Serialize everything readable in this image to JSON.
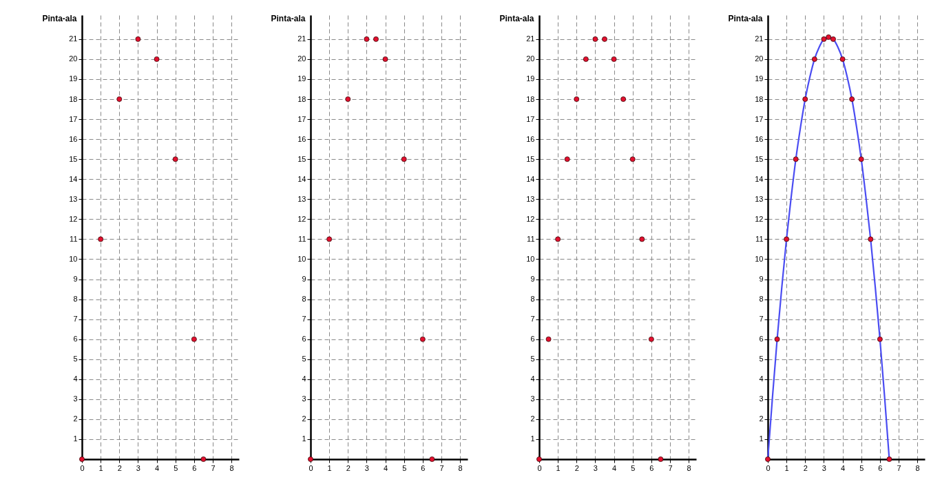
{
  "chart_data": [
    {
      "type": "scatter",
      "ylabel": "Pinta-ala",
      "xlim": [
        0,
        8.4
      ],
      "ylim": [
        0,
        22.2
      ],
      "xticks": [
        0,
        1,
        2,
        3,
        4,
        5,
        6,
        7,
        8
      ],
      "yticks": [
        1,
        2,
        3,
        4,
        5,
        6,
        7,
        8,
        9,
        10,
        11,
        12,
        13,
        14,
        15,
        16,
        17,
        18,
        19,
        20,
        21
      ],
      "grid": true,
      "marker": "circle",
      "series": [
        {
          "type": "scatter",
          "color": "#e3102f",
          "x": [
            0,
            1,
            2,
            3,
            4,
            5,
            6,
            6.5
          ],
          "values": [
            0,
            11,
            18,
            21,
            20,
            15,
            6,
            0
          ]
        }
      ]
    },
    {
      "type": "scatter",
      "ylabel": "Pinta-ala",
      "xlim": [
        0,
        8.4
      ],
      "ylim": [
        0,
        22.2
      ],
      "xticks": [
        0,
        1,
        2,
        3,
        4,
        5,
        6,
        7,
        8
      ],
      "yticks": [
        1,
        2,
        3,
        4,
        5,
        6,
        7,
        8,
        9,
        10,
        11,
        12,
        13,
        14,
        15,
        16,
        17,
        18,
        19,
        20,
        21
      ],
      "grid": true,
      "marker": "circle",
      "series": [
        {
          "type": "scatter",
          "color": "#e3102f",
          "x": [
            0,
            1,
            2,
            3,
            3.5,
            4,
            5,
            6,
            6.5
          ],
          "values": [
            0,
            11,
            18,
            21,
            21,
            20,
            15,
            6,
            0
          ]
        }
      ]
    },
    {
      "type": "scatter",
      "ylabel": "Pinta-ala",
      "xlim": [
        0,
        8.4
      ],
      "ylim": [
        0,
        22.2
      ],
      "xticks": [
        0,
        1,
        2,
        3,
        4,
        5,
        6,
        7,
        8
      ],
      "yticks": [
        1,
        2,
        3,
        4,
        5,
        6,
        7,
        8,
        9,
        10,
        11,
        12,
        13,
        14,
        15,
        16,
        17,
        18,
        19,
        20,
        21
      ],
      "grid": true,
      "marker": "circle",
      "series": [
        {
          "type": "scatter",
          "color": "#e3102f",
          "x": [
            0,
            0.5,
            1,
            1.5,
            2,
            2.5,
            3,
            3.5,
            4,
            4.5,
            5,
            5.5,
            6,
            6.5
          ],
          "values": [
            0,
            6,
            11,
            15,
            18,
            20,
            21,
            21,
            20,
            18,
            15,
            11,
            6,
            0
          ]
        }
      ]
    },
    {
      "type": "scatter",
      "ylabel": "Pinta-ala",
      "xlim": [
        0,
        8.4
      ],
      "ylim": [
        0,
        22.2
      ],
      "xticks": [
        0,
        1,
        2,
        3,
        4,
        5,
        6,
        7,
        8
      ],
      "yticks": [
        1,
        2,
        3,
        4,
        5,
        6,
        7,
        8,
        9,
        10,
        11,
        12,
        13,
        14,
        15,
        16,
        17,
        18,
        19,
        20,
        21
      ],
      "grid": true,
      "marker": "circle",
      "line_style": "solid",
      "series": [
        {
          "type": "line",
          "marker": "none",
          "color": "#4a4cf2",
          "x": [
            0,
            0.25,
            0.5,
            0.75,
            1,
            1.25,
            1.5,
            1.75,
            2,
            2.25,
            2.5,
            2.75,
            3,
            3.25,
            3.5,
            3.75,
            4,
            4.25,
            4.5,
            4.75,
            5,
            5.25,
            5.5,
            5.75,
            6,
            6.25,
            6.5
          ],
          "values": [
            0,
            3.1,
            6,
            8.6,
            11,
            13.1,
            15,
            16.6,
            18,
            19.1,
            20,
            20.6,
            21,
            21.1,
            21,
            20.6,
            20,
            19.1,
            18,
            16.6,
            15,
            13.1,
            11,
            8.6,
            6,
            3.1,
            0
          ]
        },
        {
          "type": "scatter",
          "color": "#e3102f",
          "x": [
            0,
            0.5,
            1,
            1.5,
            2,
            2.5,
            3,
            3.25,
            3.5,
            4,
            4.5,
            5,
            5.5,
            6,
            6.5
          ],
          "values": [
            0,
            6,
            11,
            15,
            18,
            20,
            21,
            21.1,
            21,
            20,
            18,
            15,
            11,
            6,
            0
          ]
        }
      ]
    }
  ]
}
